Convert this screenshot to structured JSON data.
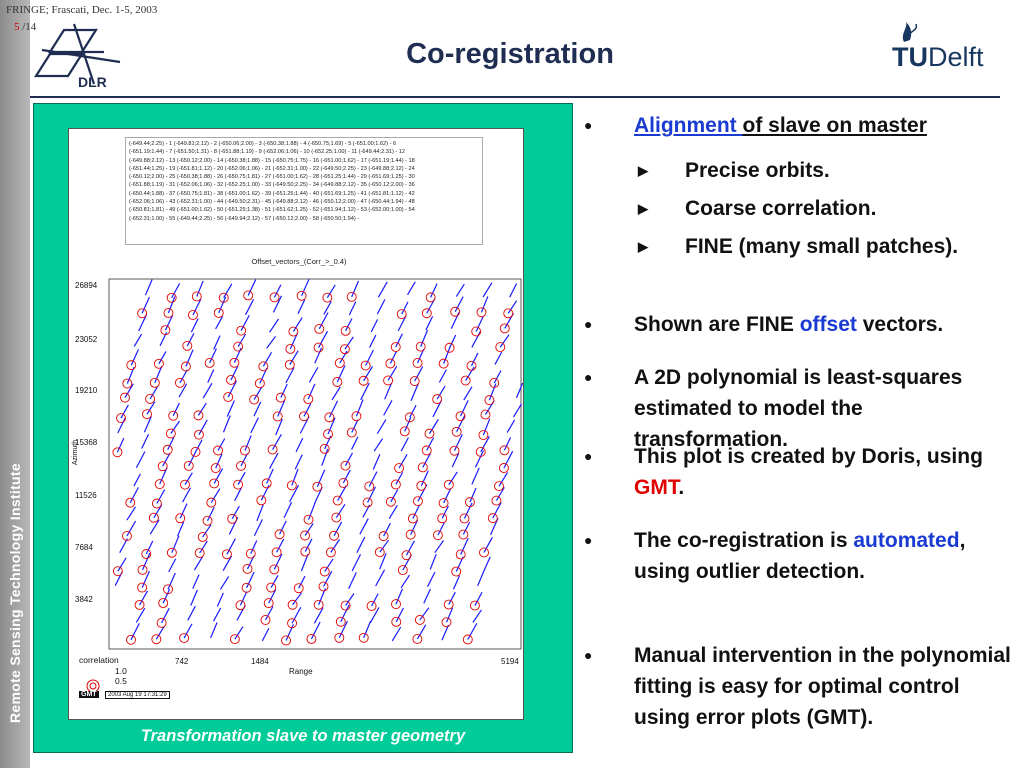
{
  "header": {
    "conference": "FRINGE; Frascati, Dec. 1-5, 2003",
    "page_current": "5",
    "page_total": "/14",
    "title": "Co-registration",
    "dlr_label": "DLR",
    "tud_tu": "TU",
    "tud_delft": "Delft"
  },
  "sidebar": {
    "label": "Remote Sensing Technology Institute"
  },
  "figure": {
    "caption": "Transformation slave to master geometry",
    "plot_title": "Offset_vectors_(Corr_>_0.4)",
    "y_ticks": [
      "26894",
      "23052",
      "19210",
      "15368",
      "11526",
      "7684",
      "3842"
    ],
    "x_ticks": [
      "742",
      "1484",
      "5194"
    ],
    "y_label": "Azimuth",
    "x_label": "Range",
    "legend_title": "correlation",
    "legend_high": "1.0",
    "legend_low": "0.5",
    "gmt_badge": "GMT",
    "gmt_date": "2003 Aug 19 17:31:29",
    "offset_table": [
      "(-649.44;2.25) - 1 (-649.81;2.12) - 2 (-650.06;2.00) - 3 (-650.38;1.88) - 4 (-650.75;1.69) - 5 (-651.00;1.62) - 6",
      "(-651.19;1.44) - 7 (-651.50;1.31) - 8 (-651.88;1.19) - 9 (-652.06;1.06) - 10 (-652.25;1.00) - 11 (-649.44;2.31) - 12",
      "(-649.88;2.12) - 13 (-650.12;2.00) - 14 (-650.38;1.88) - 15 (-650.75;1.75) - 16 (-651.00;1.62) - 17 (-651.19;1.44) - 18",
      "(-651.44;1.25) - 19 (-651.81;1.12) - 20 (-652.06;1.06) - 21 (-652.31;1.00) - 22 (-649.50;2.25) - 23 (-649.88;2.12) - 24",
      "(-650.12;2.00) - 25 (-650.38;1.88) - 26 (-650.75;1.81) - 27 (-651.00;1.62) - 28 (-651.25;1.44) - 29 (-651.69;1.25) - 30",
      "(-651.88;1.19) - 31 (-652.06;1.06) - 32 (-652.25;1.00) - 33 (-649.50;2.25) - 34 (-649.88;2.12) - 35 (-650.12;2.00) - 36",
      "(-650.44;1.88) - 37 (-650.75;1.81) - 38 (-651.00;1.62) - 39 (-651.25;1.44) - 40 (-651.69;1.25) - 41 (-651.81;1.12) - 42",
      "(-652.06;1.06) - 43 (-652.31;1.00) - 44 (-649.50;2.31) - 45 (-649.88;2.12) - 46 (-650.12;2.00) - 47 (-650.44;1.94) - 48",
      "(-650.81;1.81) - 49 (-651.00;1.62) - 50 (-651.25;1.38) - 51 (-651.62;1.25) - 52 (-651.94;1.12) - 53 (-652.00;1.00) - 54",
      "(-652.31;1.00) - 55 (-649.44;2.25) - 56 (-649.94;2.12) - 57 (-650.12;2.00) - 58 (-650.50;1.94) -"
    ]
  },
  "bullets": {
    "b1_link": "Alignment ",
    "b1_rest": "of slave on master",
    "b1_sub1": "Precise orbits.",
    "b1_sub2": "Coarse correlation.",
    "b1_sub3": "FINE (many small patches).",
    "b2_a": "Shown are FINE ",
    "b2_b": "offset",
    "b2_c": " vectors.",
    "b3": "A 2D polynomial is least-squares estimated to model the transformation.",
    "b4_a": "This plot is created by Doris, using ",
    "b4_b": "GMT",
    "b4_c": ".",
    "b5_a": "The co-registration is ",
    "b5_b": "automated",
    "b5_c": ", using outlier detection.",
    "b6": "Manual intervention in the polynomial fitting is easy for optimal control using error plots (GMT)."
  },
  "colors": {
    "accent_navy": "#1f2d52",
    "panel_green": "#00cc99",
    "vector_blue": "#1a1aff",
    "circle_red": "#e00000",
    "link_blue": "#1a3bd1",
    "gmt_red": "#e00000"
  }
}
